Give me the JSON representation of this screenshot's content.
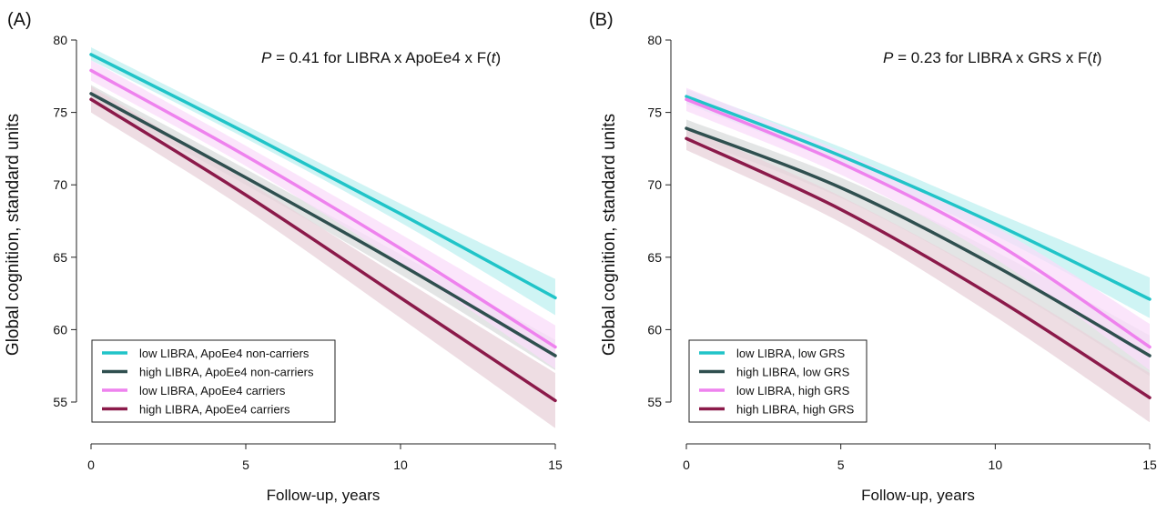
{
  "chart_data": [
    {
      "type": "line",
      "panel_label": "(A)",
      "annotation": {
        "p_symbol": "P",
        "text": " = 0.41 for LIBRA x ApoEe4 x F(",
        "t_symbol": "t",
        "close": ")"
      },
      "xlabel": "Follow-up, years",
      "ylabel": "Global cognition, standard units",
      "xlim": [
        0,
        15
      ],
      "ylim": [
        52,
        80
      ],
      "xticks": [
        0,
        5,
        10,
        15
      ],
      "yticks": [
        55,
        60,
        65,
        70,
        75,
        80
      ],
      "grid": false,
      "legend_position": "bottom-left",
      "series": [
        {
          "name": "low LIBRA, ApoEe4 non-carriers",
          "color": "#20c4c8",
          "band": "#bff0f0",
          "x": [
            0,
            5,
            10,
            15
          ],
          "y": [
            79.0,
            73.6,
            68.0,
            62.2
          ],
          "y_lower": [
            78.6,
            73.2,
            67.4,
            61.0
          ],
          "y_upper": [
            79.5,
            74.1,
            68.7,
            63.5
          ]
        },
        {
          "name": "high LIBRA, ApoEe4 non-carriers",
          "color": "#2f4f4f",
          "band": "#d9dcdc",
          "x": [
            0,
            5,
            10,
            15
          ],
          "y": [
            76.3,
            70.5,
            64.5,
            58.2
          ],
          "y_lower": [
            75.8,
            70.0,
            63.8,
            57.2
          ],
          "y_upper": [
            76.9,
            71.1,
            65.2,
            59.3
          ]
        },
        {
          "name": "low LIBRA, ApoEe4 carriers",
          "color": "#ee82ee",
          "band": "#f9dcf9",
          "x": [
            0,
            5,
            10,
            15
          ],
          "y": [
            77.9,
            72.0,
            65.6,
            58.8
          ],
          "y_lower": [
            77.2,
            71.3,
            64.6,
            57.3
          ],
          "y_upper": [
            78.6,
            72.7,
            66.6,
            60.3
          ]
        },
        {
          "name": "high LIBRA, ApoEe4 carriers",
          "color": "#8b1a4a",
          "band": "#e8d2da",
          "x": [
            0,
            5,
            10,
            15
          ],
          "y": [
            75.9,
            69.3,
            62.2,
            55.1
          ],
          "y_lower": [
            75.0,
            68.3,
            60.8,
            53.2
          ],
          "y_upper": [
            76.8,
            70.3,
            63.6,
            57.0
          ]
        }
      ]
    },
    {
      "type": "line",
      "panel_label": "(B)",
      "annotation": {
        "p_symbol": "P",
        "text": " = 0.23 for LIBRA x GRS x F(",
        "t_symbol": "t",
        "close": ")"
      },
      "xlabel": "Follow-up, years",
      "ylabel": "Global cognition, standard units",
      "xlim": [
        0,
        15
      ],
      "ylim": [
        52,
        80
      ],
      "xticks": [
        0,
        5,
        10,
        15
      ],
      "yticks": [
        55,
        60,
        65,
        70,
        75,
        80
      ],
      "grid": false,
      "legend_position": "bottom-left",
      "series": [
        {
          "name": "low LIBRA, low GRS",
          "color": "#20c4c8",
          "band": "#bff0f0",
          "x": [
            0,
            5,
            10,
            15
          ],
          "y": [
            76.1,
            72.0,
            67.3,
            62.1
          ],
          "y_lower": [
            75.6,
            71.4,
            66.5,
            60.8
          ],
          "y_upper": [
            76.6,
            72.6,
            68.1,
            63.6
          ]
        },
        {
          "name": "high LIBRA, low GRS",
          "color": "#2f4f4f",
          "band": "#d9dcdc",
          "x": [
            0,
            5,
            10,
            15
          ],
          "y": [
            73.9,
            69.8,
            64.4,
            58.2
          ],
          "y_lower": [
            73.3,
            69.1,
            63.4,
            56.8
          ],
          "y_upper": [
            74.5,
            70.5,
            65.4,
            59.6
          ]
        },
        {
          "name": "low LIBRA, high GRS",
          "color": "#ee82ee",
          "band": "#f9dcf9",
          "x": [
            0,
            5,
            10,
            15
          ],
          "y": [
            75.9,
            71.5,
            66.0,
            58.8
          ],
          "y_lower": [
            75.1,
            70.7,
            64.9,
            57.2
          ],
          "y_upper": [
            76.7,
            72.3,
            67.1,
            60.4
          ]
        },
        {
          "name": "high LIBRA, high GRS",
          "color": "#8b1a4a",
          "band": "#e8d2da",
          "x": [
            0,
            5,
            10,
            15
          ],
          "y": [
            73.2,
            68.3,
            62.2,
            55.3
          ],
          "y_lower": [
            72.4,
            67.4,
            60.9,
            53.6
          ],
          "y_upper": [
            74.0,
            69.2,
            63.5,
            57.0
          ]
        }
      ]
    }
  ]
}
